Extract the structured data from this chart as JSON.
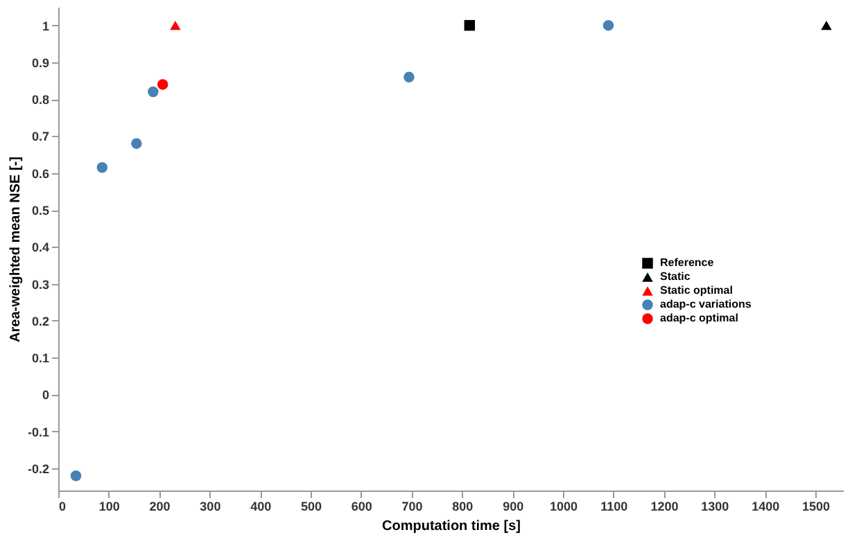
{
  "chart_data": {
    "type": "scatter",
    "xlabel": "Computation time [s]",
    "ylabel": "Area-weighted mean NSE [-]",
    "xlim": [
      0,
      1555
    ],
    "xticks": [
      0,
      100,
      200,
      300,
      400,
      500,
      600,
      700,
      800,
      900,
      1000,
      1100,
      1200,
      1300,
      1400,
      1500
    ],
    "ylim": [
      -0.26,
      1.05
    ],
    "yticks": [
      -0.2,
      -0.1,
      0,
      0.1,
      0.2,
      0.3,
      0.4,
      0.5,
      0.6,
      0.7,
      0.8,
      0.9,
      1
    ],
    "grid": false,
    "legend": "right",
    "series": [
      {
        "name": "Reference",
        "color": "#000000",
        "marker": "square",
        "x": [
          815
        ],
        "values": [
          1.0
        ]
      },
      {
        "name": "Static",
        "color": "#000000",
        "marker": "triangle",
        "x": [
          1522
        ],
        "values": [
          1.0
        ]
      },
      {
        "name": "Static optimal",
        "color": "#ff0000",
        "marker": "triangle",
        "x": [
          232
        ],
        "values": [
          1.0
        ]
      },
      {
        "name": "adap-c variations",
        "color": "#4682b4",
        "marker": "circle",
        "x": [
          35,
          87,
          155,
          188,
          695,
          1090
        ],
        "values": [
          -0.22,
          0.615,
          0.68,
          0.82,
          0.86,
          1.0
        ]
      },
      {
        "name": "adap-c optimal",
        "color": "#ff0000",
        "marker": "circle",
        "x": [
          207
        ],
        "values": [
          0.84
        ]
      }
    ]
  }
}
